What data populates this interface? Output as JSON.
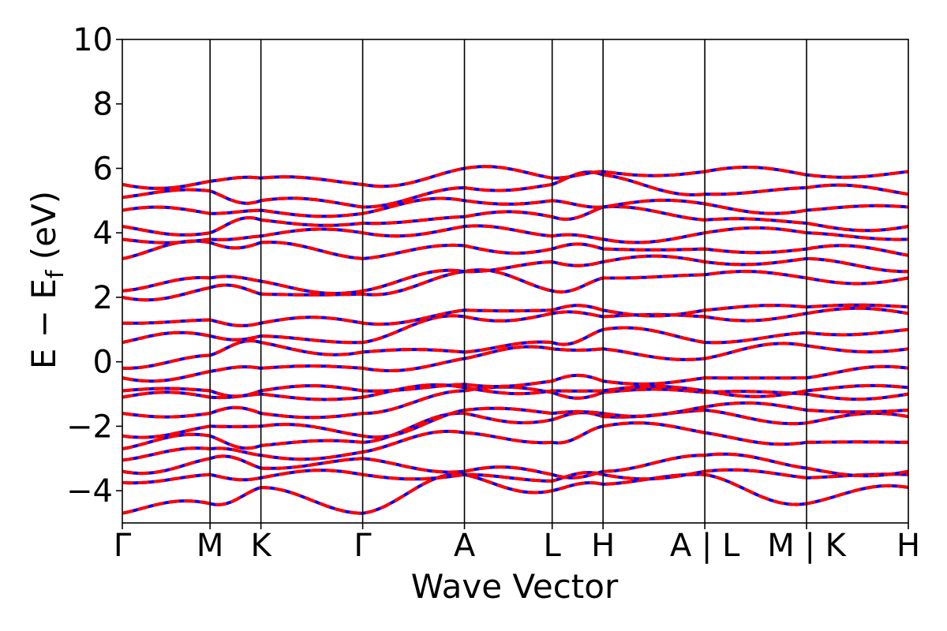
{
  "chart_data": {
    "type": "line",
    "title": "",
    "xlabel": "Wave Vector",
    "ylabel_main": "E − E",
    "ylabel_sub": "f",
    "ylabel_tail": " (eV)",
    "ylim": [
      -5,
      10
    ],
    "yticks": [
      "−4",
      "−2",
      "0",
      "2",
      "4",
      "6",
      "8",
      "10"
    ],
    "ytick_values": [
      -4,
      -2,
      0,
      2,
      4,
      6,
      8,
      10
    ],
    "kpoint_labels": [
      "Γ",
      "M",
      "K",
      "Γ",
      "A",
      "L",
      "H",
      "A | L",
      "M | K",
      "H"
    ],
    "kpoint_positions": [
      0.0,
      1.0,
      1.58,
      2.74,
      3.9,
      4.9,
      5.48,
      6.64,
      7.8,
      8.96
    ],
    "grid": false,
    "legend": "none",
    "series_styles": {
      "spin_up": {
        "color": "#0000ff",
        "style": "solid"
      },
      "spin_down": {
        "color": "#ff0000",
        "style": "dashed"
      }
    },
    "bands_at_kpoints": [
      [
        -4.7,
        -4.4,
        -3.9,
        -4.7,
        -3.5,
        -4.0,
        -3.8,
        -3.5,
        -4.4,
        -3.9
      ],
      [
        -3.75,
        -3.5,
        -3.6,
        -3.5,
        -3.5,
        -3.7,
        -3.5,
        -3.4,
        -3.6,
        -3.5
      ],
      [
        -3.4,
        -3.0,
        -3.3,
        -3.0,
        -3.4,
        -3.5,
        -3.4,
        -2.9,
        -3.3,
        -3.4
      ],
      [
        -3.05,
        -2.7,
        -2.9,
        -2.8,
        -2.2,
        -2.5,
        -2.0,
        -2.2,
        -2.5,
        -2.5
      ],
      [
        -2.7,
        -2.3,
        -2.6,
        -2.5,
        -1.6,
        -1.8,
        -1.7,
        -1.5,
        -1.9,
        -1.7
      ],
      [
        -2.3,
        -2.0,
        -2.0,
        -2.3,
        -1.5,
        -1.6,
        -1.6,
        -1.4,
        -1.5,
        -1.5
      ],
      [
        -1.6,
        -1.6,
        -1.6,
        -1.6,
        -0.9,
        -0.95,
        -0.95,
        -0.95,
        -1.0,
        -1.0
      ],
      [
        -1.1,
        -1.1,
        -1.0,
        -1.1,
        -0.8,
        -0.9,
        -0.9,
        -0.9,
        -0.9,
        -0.8
      ],
      [
        -0.9,
        -0.9,
        -0.9,
        -0.9,
        -0.7,
        -0.6,
        -0.6,
        -0.5,
        -0.5,
        -0.2
      ],
      [
        -0.5,
        -0.3,
        -0.2,
        -0.2,
        0.1,
        0.4,
        0.4,
        0.1,
        0.5,
        0.4
      ],
      [
        -0.2,
        0.2,
        0.6,
        0.3,
        0.3,
        0.6,
        1.0,
        0.6,
        0.9,
        1.0
      ],
      [
        0.6,
        0.8,
        0.8,
        0.6,
        1.4,
        1.5,
        1.4,
        1.4,
        1.5,
        1.5
      ],
      [
        1.2,
        1.3,
        1.2,
        1.2,
        1.6,
        1.6,
        1.6,
        1.6,
        1.7,
        1.7
      ],
      [
        2.0,
        2.3,
        2.1,
        2.1,
        2.8,
        2.2,
        2.6,
        2.7,
        2.6,
        2.6
      ],
      [
        2.2,
        2.6,
        2.5,
        2.2,
        2.8,
        3.1,
        3.1,
        3.1,
        3.2,
        2.8
      ],
      [
        3.2,
        3.7,
        3.7,
        3.2,
        3.6,
        3.5,
        3.5,
        3.5,
        3.5,
        3.3
      ],
      [
        3.8,
        3.8,
        3.9,
        4.0,
        4.2,
        3.9,
        3.8,
        4.0,
        4.0,
        3.8
      ],
      [
        4.2,
        4.0,
        4.4,
        4.3,
        4.5,
        4.5,
        4.8,
        4.4,
        4.3,
        4.2
      ],
      [
        4.7,
        4.6,
        4.7,
        4.6,
        5.0,
        5.0,
        4.8,
        4.9,
        4.7,
        4.8
      ],
      [
        5.1,
        5.3,
        5.0,
        4.8,
        5.4,
        5.5,
        5.8,
        5.2,
        5.4,
        5.2
      ],
      [
        5.5,
        5.6,
        5.7,
        5.5,
        6.0,
        5.7,
        5.9,
        5.9,
        5.8,
        5.9
      ]
    ]
  }
}
